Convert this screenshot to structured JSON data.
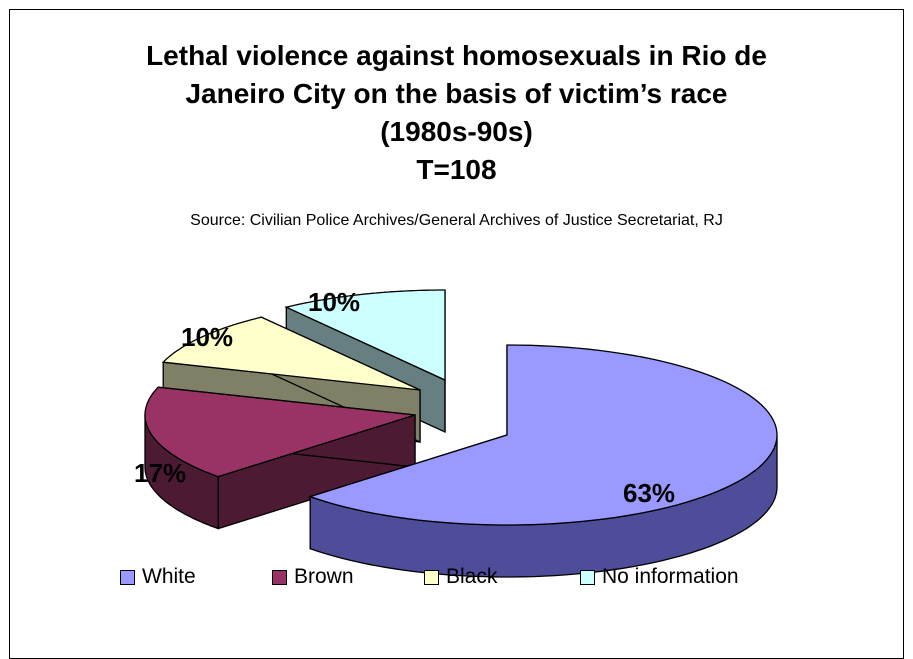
{
  "chart_data": {
    "type": "pie",
    "title_lines": [
      "Lethal violence against homosexuals in Rio de",
      "Janeiro City on the basis of victim’s race",
      "(1980s-90s)",
      "T=108"
    ],
    "subtitle": "Source: Civilian Police Archives/General Archives of Justice Secretariat, RJ",
    "categories": [
      "White",
      "Brown",
      "Black",
      "No information"
    ],
    "values": [
      63,
      17,
      10,
      10
    ],
    "value_labels": [
      "63%",
      "17%",
      "10%",
      "10%"
    ],
    "colors": [
      "#9999ff",
      "#993366",
      "#ffffcc",
      "#ccffff"
    ],
    "side_colors": [
      "#4d4d99",
      "#4d1a33",
      "#808066",
      "#667f80"
    ],
    "legend_position": "bottom",
    "exploded": true,
    "three_d": true
  }
}
